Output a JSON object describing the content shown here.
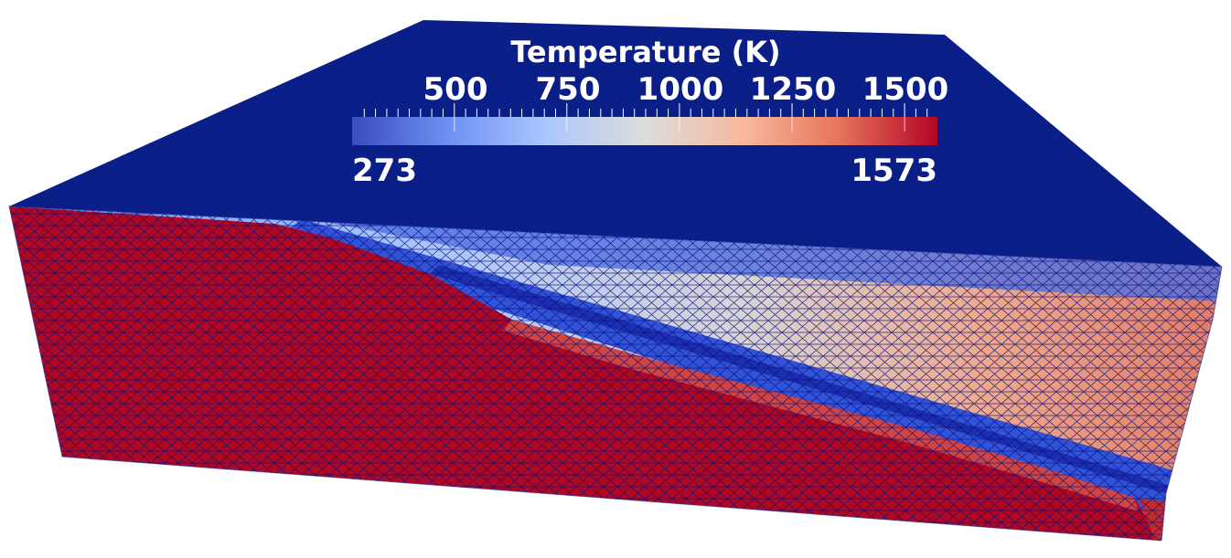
{
  "colorbar": {
    "title": "Temperature (K)",
    "major_ticks": [
      "500",
      "750",
      "1000",
      "1250",
      "1500"
    ],
    "min_label": "273",
    "max_label": "1573",
    "range": [
      273,
      1573
    ],
    "colormap": [
      "#3b4cc0",
      "#6f92f3",
      "#aac7fd",
      "#dddcdc",
      "#f7b89c",
      "#e7745b",
      "#b40426"
    ]
  },
  "colors": {
    "top_surface": "#0a1f88",
    "mesh_lines": "#0b0f80",
    "cold": "#2a4bd0",
    "hot": "#b2081f",
    "background": "#ffffff"
  }
}
